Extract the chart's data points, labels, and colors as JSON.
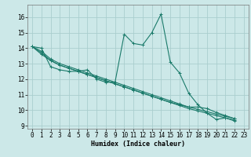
{
  "title": "",
  "xlabel": "Humidex (Indice chaleur)",
  "bg_color": "#cce8e8",
  "grid_color": "#aacece",
  "line_color": "#1a7a6a",
  "xlim": [
    -0.5,
    23.5
  ],
  "ylim": [
    8.8,
    16.8
  ],
  "xticks": [
    0,
    1,
    2,
    3,
    4,
    5,
    6,
    7,
    8,
    9,
    10,
    11,
    12,
    13,
    14,
    15,
    16,
    17,
    18,
    19,
    20,
    21,
    22,
    23
  ],
  "yticks": [
    9,
    10,
    11,
    12,
    13,
    14,
    15,
    16
  ],
  "series": [
    [
      14.1,
      14.0,
      12.8,
      12.6,
      12.5,
      12.5,
      12.6,
      12.0,
      11.8,
      11.8,
      14.9,
      14.3,
      14.2,
      15.0,
      16.2,
      13.1,
      12.4,
      11.1,
      10.35,
      9.8,
      9.4,
      9.5,
      9.3
    ],
    [
      14.1,
      13.8,
      13.3,
      13.0,
      12.8,
      12.6,
      12.4,
      12.2,
      12.0,
      11.8,
      11.6,
      11.4,
      11.2,
      11.0,
      10.8,
      10.6,
      10.4,
      10.2,
      10.2,
      10.1,
      9.85,
      9.65,
      9.45
    ],
    [
      14.1,
      13.6,
      13.2,
      12.9,
      12.7,
      12.5,
      12.3,
      12.1,
      11.9,
      11.7,
      11.5,
      11.3,
      11.1,
      10.9,
      10.7,
      10.5,
      10.35,
      10.2,
      10.05,
      9.9,
      9.75,
      9.6,
      9.45
    ],
    [
      14.1,
      13.7,
      13.2,
      12.9,
      12.7,
      12.5,
      12.3,
      12.1,
      11.9,
      11.7,
      11.5,
      11.3,
      11.1,
      10.9,
      10.7,
      10.5,
      10.3,
      10.1,
      9.95,
      9.8,
      9.65,
      9.5,
      9.35
    ]
  ],
  "marker_style": "+",
  "linewidth": 0.8,
  "marker_size": 3,
  "markeredge": 0.7,
  "font_size_label": 6,
  "font_size_tick": 5.5
}
